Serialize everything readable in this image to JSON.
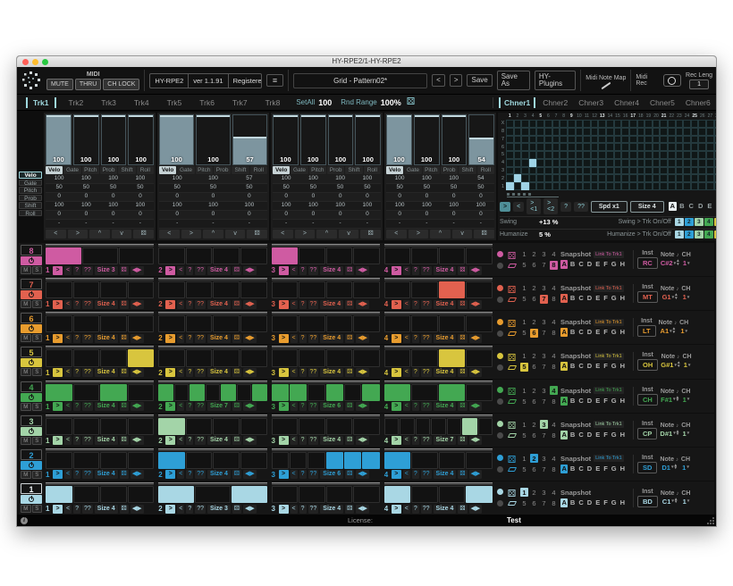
{
  "window": {
    "title": "HY-RPE2/1-HY-RPE2"
  },
  "header": {
    "midi_label": "MIDI",
    "midi_buttons": [
      "MUTE",
      "THRU",
      "CH LOCK"
    ],
    "plugin_name": "HY-RPE2",
    "version": "ver 1.1.91",
    "registered": "Registered",
    "menu_icon": "≡",
    "pattern": "Grid - Pattern02*",
    "nav_prev": "<",
    "nav_next": ">",
    "save": "Save",
    "save_as": "Save As",
    "hy_plugins": "HY-Plugins",
    "midi_note_map": "Midi Note Map",
    "midi_rec": "Midi Rec",
    "rec_leng_label": "Rec Leng",
    "rec_leng_value": "1"
  },
  "track_tabs": {
    "items": [
      "Trk1",
      "Trk2",
      "Trk3",
      "Trk4",
      "Trk5",
      "Trk6",
      "Trk7",
      "Trk8"
    ],
    "selected": "Trk1",
    "set_all_label": "SetAll",
    "set_all_value": "100",
    "rnd_range_label": "Rnd Range",
    "rnd_range_value": "100%"
  },
  "chner_tabs": {
    "items": [
      "Chner1",
      "Chner2",
      "Chner3",
      "Chner4",
      "Chner5",
      "Chner6",
      "Chner7",
      "Chner8"
    ],
    "selected": "Chner1"
  },
  "param_tabs": [
    "Velo",
    "Gate",
    "Pitch",
    "Prob",
    "Shift",
    "Roll"
  ],
  "selected_param": "Velo",
  "panel_nav": [
    "<",
    ">",
    "^",
    "v",
    "⚄"
  ],
  "slider_panels": [
    {
      "sliders": [
        {
          "value": "100",
          "pct": 100,
          "filled": true
        },
        {
          "value": "100",
          "pct": 100,
          "filled": false
        },
        {
          "value": "100",
          "pct": 100,
          "filled": false
        },
        {
          "value": "100",
          "pct": 100,
          "filled": false
        }
      ],
      "table": [
        [
          "100",
          "100",
          "100",
          "100"
        ],
        [
          "50",
          "50",
          "50",
          "50"
        ],
        [
          "0",
          "0",
          "0",
          "0"
        ],
        [
          "100",
          "100",
          "100",
          "100"
        ],
        [
          "0",
          "0",
          "0",
          "0"
        ],
        [
          "-",
          "-",
          "-",
          "-"
        ]
      ]
    },
    {
      "sliders": [
        {
          "value": "100",
          "pct": 100,
          "filled": true
        },
        {
          "value": "100",
          "pct": 100,
          "filled": false
        },
        {
          "value": "57",
          "pct": 57,
          "filled": true
        }
      ],
      "table": [
        [
          "100",
          "100",
          "57"
        ],
        [
          "50",
          "50",
          "50"
        ],
        [
          "0",
          "0",
          "0"
        ],
        [
          "100",
          "100",
          "100"
        ],
        [
          "0",
          "0",
          "0"
        ],
        [
          "-",
          "-",
          "-"
        ]
      ]
    },
    {
      "sliders": [
        {
          "value": "100",
          "pct": 100,
          "filled": false
        },
        {
          "value": "100",
          "pct": 100,
          "filled": false
        },
        {
          "value": "100",
          "pct": 100,
          "filled": false
        },
        {
          "value": "100",
          "pct": 100,
          "filled": false
        }
      ],
      "table": [
        [
          "100",
          "100",
          "100",
          "100"
        ],
        [
          "50",
          "50",
          "50",
          "50"
        ],
        [
          "0",
          "0",
          "0",
          "0"
        ],
        [
          "100",
          "100",
          "100",
          "100"
        ],
        [
          "0",
          "0",
          "0",
          "0"
        ],
        [
          "-",
          "-",
          "-",
          "-"
        ]
      ]
    },
    {
      "sliders": [
        {
          "value": "100",
          "pct": 100,
          "filled": true
        },
        {
          "value": "100",
          "pct": 100,
          "filled": false
        },
        {
          "value": "100",
          "pct": 100,
          "filled": false
        },
        {
          "value": "54",
          "pct": 54,
          "filled": true
        }
      ],
      "table": [
        [
          "100",
          "100",
          "100",
          "54"
        ],
        [
          "50",
          "50",
          "50",
          "50"
        ],
        [
          "0",
          "0",
          "0",
          "0"
        ],
        [
          "100",
          "100",
          "100",
          "100"
        ],
        [
          "0",
          "0",
          "0",
          "0"
        ],
        [
          "-",
          "-",
          "-",
          "-"
        ]
      ]
    }
  ],
  "chner_grid": {
    "row_labels": [
      "X",
      "8",
      "7",
      "6",
      "5",
      "4",
      "3",
      "2",
      "1"
    ],
    "num_cols": 32,
    "bold_every": 4,
    "filled_cells": [
      {
        "col": 1,
        "row": "1"
      },
      {
        "col": 2,
        "row": "2"
      },
      {
        "col": 3,
        "row": "1"
      },
      {
        "col": 4,
        "row": "4"
      }
    ],
    "page_dots": 5,
    "buttons": [
      ">",
      "<",
      "><1",
      "><2",
      "?",
      "??"
    ],
    "selected_button": ">",
    "spd": "Spd x1",
    "size": "Size 4",
    "letters": [
      "A",
      "B",
      "C",
      "D",
      "E",
      "F",
      "G",
      "H"
    ],
    "selected_letter": "A",
    "dice_icon": "⚄",
    "swing": {
      "label": "Swing",
      "value": "+13 %",
      "route": "Swing > Trk On/Off"
    },
    "humanize": {
      "label": "Humanize",
      "value": "5 %",
      "route": "Humanize > Trk On/Off"
    },
    "strip": [
      {
        "n": "1",
        "color": "#a9d7e4"
      },
      {
        "n": "2",
        "color": "#2e9fd6"
      },
      {
        "n": "3",
        "color": "#a3d4a8"
      },
      {
        "n": "4",
        "color": "#43a852"
      },
      {
        "n": "5",
        "color": "#d8c53e"
      },
      {
        "n": "6",
        "color": "#e89c2e"
      },
      {
        "n": "7",
        "color": "#e2614f"
      },
      {
        "n": "8",
        "color": "#cf5ba2"
      }
    ]
  },
  "track_common": {
    "mute": "M",
    "solo": "S",
    "go": ">",
    "back": "<",
    "q": "?",
    "qq": "??",
    "dice_icon": "⚄",
    "lr_icon": "◀▶",
    "nums_top": [
      "1",
      "2",
      "3",
      "4"
    ],
    "nums_bottom": [
      "5",
      "6",
      "7",
      "8"
    ],
    "snapshot": "Snapshot",
    "link": "Link To Trk1",
    "letters": [
      "A",
      "B",
      "C",
      "D",
      "E",
      "F",
      "G",
      "H"
    ],
    "selected_letter": "A",
    "inst_header": "Inst",
    "note_header": "Note",
    "ch_header": "CH",
    "audition_icon": "♪",
    "dropdown_icon": "▾",
    "step_up": "▴",
    "step_down": "▾"
  },
  "tracks": [
    {
      "num": "8",
      "color": "#cf5ba2",
      "active": false,
      "sel_num": "8",
      "has_link": true,
      "inst": "RC",
      "note": "C#2",
      "ch": "1",
      "groups": [
        {
          "page": "1",
          "size": "Size 3",
          "steps": [
            1,
            0,
            0
          ]
        },
        {
          "page": "2",
          "size": "Size 4",
          "steps": [
            0,
            0,
            0,
            0
          ]
        },
        {
          "page": "3",
          "size": "Size 4",
          "steps": [
            1,
            0,
            0,
            0
          ]
        },
        {
          "page": "4",
          "size": "Size 4",
          "steps": [
            0,
            0,
            0,
            0
          ]
        }
      ]
    },
    {
      "num": "7",
      "color": "#e2614f",
      "active": false,
      "sel_num": "7",
      "has_link": true,
      "inst": "MT",
      "note": "G1",
      "ch": "1",
      "groups": [
        {
          "page": "1",
          "size": "Size 4",
          "steps": [
            0,
            0,
            0,
            0
          ]
        },
        {
          "page": "2",
          "size": "Size 4",
          "steps": [
            0,
            0,
            0,
            0
          ]
        },
        {
          "page": "3",
          "size": "Size 4",
          "steps": [
            0,
            0,
            0,
            0
          ]
        },
        {
          "page": "4",
          "size": "Size 4",
          "steps": [
            0,
            0,
            1,
            0
          ]
        }
      ]
    },
    {
      "num": "6",
      "color": "#e89c2e",
      "active": false,
      "sel_num": "6",
      "has_link": true,
      "inst": "LT",
      "note": "A1",
      "ch": "1",
      "groups": [
        {
          "page": "1",
          "size": "Size 4",
          "steps": [
            0,
            0,
            0,
            0
          ]
        },
        {
          "page": "2",
          "size": "Size 4",
          "steps": [
            0,
            0,
            0,
            0
          ]
        },
        {
          "page": "3",
          "size": "Size 4",
          "steps": [
            0,
            0,
            0,
            0
          ]
        },
        {
          "page": "4",
          "size": "Size 4",
          "steps": [
            0,
            0,
            0,
            0
          ]
        }
      ]
    },
    {
      "num": "5",
      "color": "#d8c53e",
      "active": false,
      "sel_num": "5",
      "has_link": true,
      "inst": "OH",
      "note": "G#1",
      "ch": "1",
      "groups": [
        {
          "page": "1",
          "size": "Size 4",
          "steps": [
            0,
            0,
            0,
            1
          ]
        },
        {
          "page": "2",
          "size": "Size 4",
          "steps": [
            0,
            0,
            0,
            0
          ]
        },
        {
          "page": "3",
          "size": "Size 4",
          "steps": [
            0,
            0,
            0,
            0
          ]
        },
        {
          "page": "4",
          "size": "Size 4",
          "steps": [
            0,
            0,
            1,
            0
          ]
        }
      ]
    },
    {
      "num": "4",
      "color": "#43a852",
      "active": false,
      "sel_num": "4",
      "has_link": true,
      "inst": "CH",
      "note": "F#1",
      "ch": "1",
      "groups": [
        {
          "page": "1",
          "size": "Size 4",
          "steps": [
            1,
            0,
            1,
            0
          ]
        },
        {
          "page": "2",
          "size": "Size 7",
          "steps": [
            1,
            0,
            1,
            0,
            1,
            0,
            1
          ]
        },
        {
          "page": "3",
          "size": "Size 6",
          "steps": [
            1,
            1,
            0,
            1,
            0,
            1
          ]
        },
        {
          "page": "4",
          "size": "Size 4",
          "steps": [
            1,
            0,
            1,
            0
          ]
        }
      ]
    },
    {
      "num": "3",
      "color": "#a3d4a8",
      "active": false,
      "sel_num": "3",
      "has_link": true,
      "inst": "CP",
      "note": "D#1",
      "ch": "1",
      "groups": [
        {
          "page": "1",
          "size": "Size 4",
          "steps": [
            0,
            0,
            0,
            0
          ]
        },
        {
          "page": "2",
          "size": "Size 4",
          "steps": [
            1,
            0,
            0,
            0
          ]
        },
        {
          "page": "3",
          "size": "Size 4",
          "steps": [
            0,
            0,
            0,
            0
          ]
        },
        {
          "page": "4",
          "size": "Size 7",
          "steps": [
            0,
            0,
            0,
            0,
            0,
            1,
            0
          ]
        }
      ]
    },
    {
      "num": "2",
      "color": "#2e9fd6",
      "active": false,
      "sel_num": "2",
      "has_link": true,
      "inst": "SD",
      "note": "D1",
      "ch": "1",
      "groups": [
        {
          "page": "1",
          "size": "Size 4",
          "steps": [
            0,
            0,
            0,
            0
          ]
        },
        {
          "page": "2",
          "size": "Size 4",
          "steps": [
            1,
            0,
            0,
            0
          ]
        },
        {
          "page": "3",
          "size": "Size 6",
          "steps": [
            0,
            0,
            0,
            1,
            1,
            1
          ]
        },
        {
          "page": "4",
          "size": "Size 4",
          "steps": [
            1,
            0,
            0,
            0
          ]
        }
      ]
    },
    {
      "num": "1",
      "color": "#a9d7e4",
      "active": true,
      "sel_num": "1",
      "has_link": false,
      "inst": "BD",
      "note": "C1",
      "ch": "1",
      "groups": [
        {
          "page": "1",
          "size": "Size 4",
          "steps": [
            1,
            0,
            0,
            0
          ]
        },
        {
          "page": "2",
          "size": "Size 3",
          "steps": [
            1,
            0,
            1
          ]
        },
        {
          "page": "3",
          "size": "Size 4",
          "steps": [
            0,
            0,
            0,
            0
          ]
        },
        {
          "page": "4",
          "size": "Size 4",
          "steps": [
            1,
            0,
            0,
            1
          ]
        }
      ]
    }
  ],
  "footer": {
    "license_label": "License:",
    "license_value": "Test"
  }
}
